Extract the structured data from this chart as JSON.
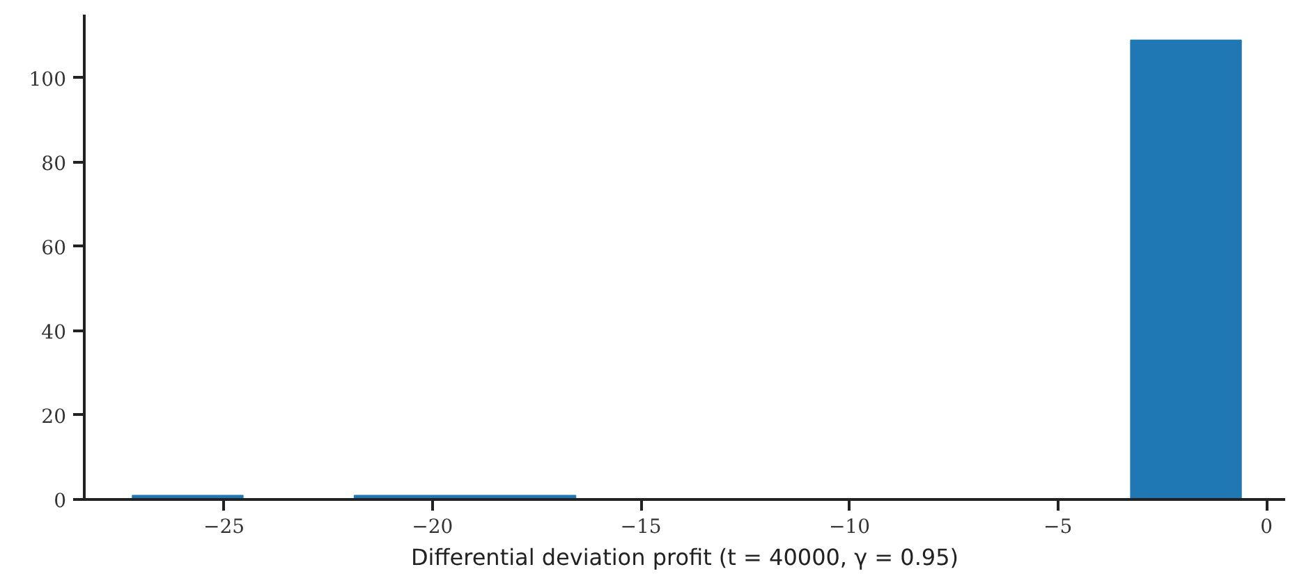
{
  "chart_data": {
    "type": "histogram",
    "xlabel": "Differential deviation profit (t = 40000, γ = 0.95)",
    "bins": [
      -27.2,
      -24.54,
      -21.88,
      -19.22,
      -16.56,
      -13.9,
      -11.24,
      -8.58,
      -5.92,
      -3.26,
      -0.6
    ],
    "values": [
      1,
      0,
      1,
      1,
      0,
      0,
      0,
      0,
      0,
      109
    ],
    "color": "#1f77b4",
    "xlim": [
      -28.35,
      0.45
    ],
    "xticks": [
      {
        "value": -25,
        "label": "−25"
      },
      {
        "value": -20,
        "label": "−20"
      },
      {
        "value": -15,
        "label": "−15"
      },
      {
        "value": -10,
        "label": "−10"
      },
      {
        "value": -5,
        "label": "−5"
      },
      0
    ],
    "ylim": [
      0,
      115
    ],
    "yticks": [
      0,
      20,
      40,
      60,
      80,
      100
    ],
    "grid": false
  }
}
